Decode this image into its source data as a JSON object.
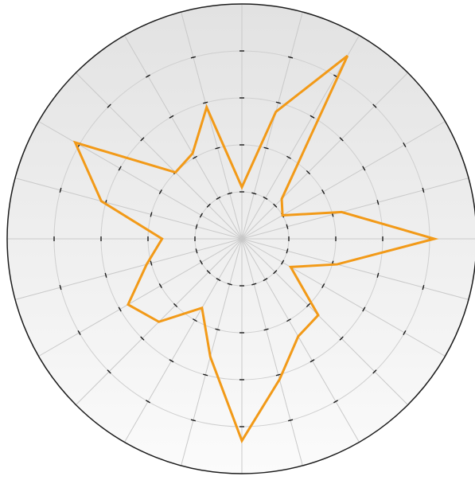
{
  "chart_data": {
    "type": "radar",
    "title": "",
    "grid": true,
    "radial_range": [
      0,
      5
    ],
    "ring_count": 5,
    "spoke_count": 24,
    "angular_direction": "clockwise",
    "start_angle": "top",
    "series": [
      {
        "color": "#f29a18",
        "values": [
          1.1,
          2.8,
          4.5,
          1.2,
          1.0,
          2.2,
          4.1,
          2.1,
          1.2,
          2.3,
          2.4,
          3.1,
          4.3,
          2.6,
          1.7,
          2.5,
          2.8,
          2.1,
          1.7,
          3.1,
          4.1,
          2.0,
          2.1,
          2.9
        ]
      }
    ]
  }
}
